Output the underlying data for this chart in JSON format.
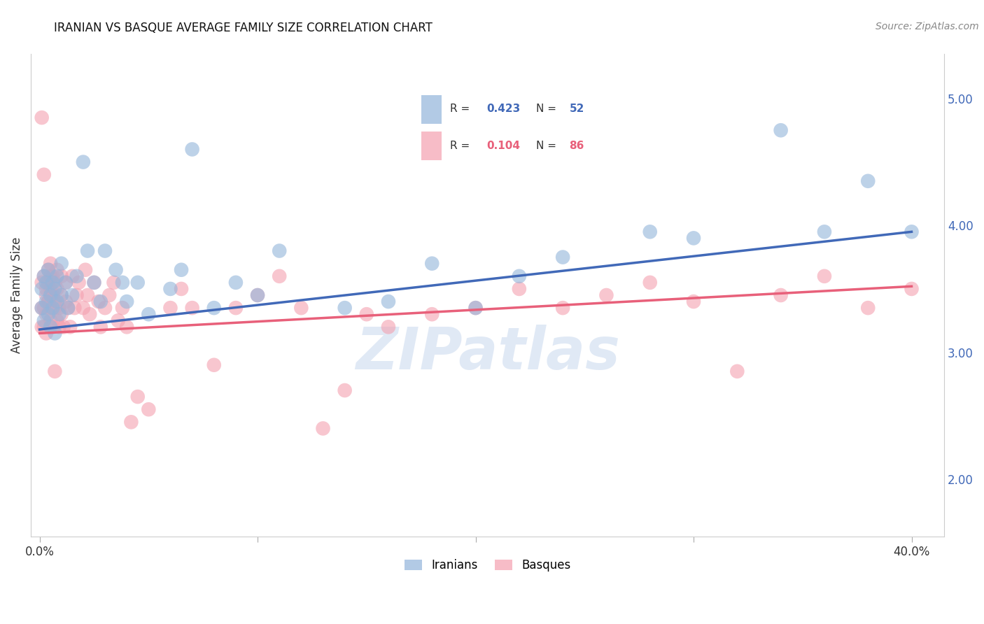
{
  "title": "IRANIAN VS BASQUE AVERAGE FAMILY SIZE CORRELATION CHART",
  "source": "Source: ZipAtlas.com",
  "ylabel": "Average Family Size",
  "ylim": [
    1.55,
    5.35
  ],
  "xlim": [
    -0.004,
    0.415
  ],
  "right_yticks": [
    2.0,
    3.0,
    4.0,
    5.0
  ],
  "blue_color": "#92B4DA",
  "pink_color": "#F4A0B0",
  "blue_line_color": "#4169B8",
  "pink_line_color": "#E8607A",
  "blue_R": 0.423,
  "blue_N": 52,
  "pink_R": 0.104,
  "pink_N": 86,
  "watermark": "ZIPatlas",
  "background_color": "#ffffff",
  "grid_color": "#cccccc",
  "iranians_x": [
    0.001,
    0.001,
    0.002,
    0.002,
    0.003,
    0.003,
    0.004,
    0.004,
    0.005,
    0.005,
    0.006,
    0.006,
    0.007,
    0.007,
    0.008,
    0.008,
    0.009,
    0.01,
    0.01,
    0.012,
    0.013,
    0.015,
    0.017,
    0.02,
    0.022,
    0.025,
    0.028,
    0.03,
    0.035,
    0.038,
    0.04,
    0.045,
    0.05,
    0.06,
    0.065,
    0.07,
    0.08,
    0.09,
    0.1,
    0.11,
    0.14,
    0.16,
    0.18,
    0.2,
    0.22,
    0.24,
    0.28,
    0.3,
    0.34,
    0.36,
    0.38,
    0.4
  ],
  "iranians_y": [
    3.35,
    3.5,
    3.25,
    3.6,
    3.4,
    3.55,
    3.3,
    3.65,
    3.45,
    3.2,
    3.55,
    3.35,
    3.15,
    3.5,
    3.6,
    3.4,
    3.3,
    3.45,
    3.7,
    3.55,
    3.35,
    3.45,
    3.6,
    4.5,
    3.8,
    3.55,
    3.4,
    3.8,
    3.65,
    3.55,
    3.4,
    3.55,
    3.3,
    3.5,
    3.65,
    4.6,
    3.35,
    3.55,
    3.45,
    3.8,
    3.35,
    3.4,
    3.7,
    3.35,
    3.6,
    3.75,
    3.95,
    3.9,
    4.75,
    3.95,
    4.35,
    3.95
  ],
  "basques_x": [
    0.001,
    0.001,
    0.001,
    0.002,
    0.002,
    0.002,
    0.003,
    0.003,
    0.003,
    0.004,
    0.004,
    0.004,
    0.005,
    0.005,
    0.005,
    0.005,
    0.006,
    0.006,
    0.006,
    0.007,
    0.007,
    0.007,
    0.008,
    0.008,
    0.008,
    0.009,
    0.009,
    0.01,
    0.01,
    0.01,
    0.011,
    0.012,
    0.012,
    0.013,
    0.014,
    0.015,
    0.016,
    0.017,
    0.018,
    0.02,
    0.021,
    0.022,
    0.023,
    0.025,
    0.027,
    0.028,
    0.03,
    0.032,
    0.034,
    0.036,
    0.038,
    0.04,
    0.042,
    0.045,
    0.05,
    0.06,
    0.065,
    0.07,
    0.08,
    0.09,
    0.1,
    0.11,
    0.12,
    0.13,
    0.14,
    0.15,
    0.16,
    0.18,
    0.2,
    0.22,
    0.24,
    0.26,
    0.28,
    0.3,
    0.32,
    0.34,
    0.36,
    0.38,
    0.4,
    0.001,
    0.002,
    0.003,
    0.004,
    0.005,
    0.006,
    0.007
  ],
  "basques_y": [
    3.35,
    3.55,
    4.85,
    3.2,
    3.6,
    4.4,
    3.45,
    3.3,
    3.15,
    3.65,
    3.4,
    3.55,
    3.25,
    3.5,
    3.35,
    3.7,
    3.45,
    3.2,
    3.6,
    3.35,
    3.55,
    3.4,
    3.25,
    3.5,
    3.65,
    3.35,
    3.2,
    3.45,
    3.3,
    3.6,
    3.2,
    3.4,
    3.55,
    3.35,
    3.2,
    3.6,
    3.35,
    3.45,
    3.55,
    3.35,
    3.65,
    3.45,
    3.3,
    3.55,
    3.4,
    3.2,
    3.35,
    3.45,
    3.55,
    3.25,
    3.35,
    3.2,
    2.45,
    2.65,
    2.55,
    3.35,
    3.5,
    3.35,
    2.9,
    3.35,
    3.45,
    3.6,
    3.35,
    2.4,
    2.7,
    3.3,
    3.2,
    3.3,
    3.35,
    3.5,
    3.35,
    3.45,
    3.55,
    3.4,
    2.85,
    3.45,
    3.6,
    3.35,
    3.5,
    3.2,
    3.35,
    3.5,
    3.4,
    3.6,
    3.45,
    2.85
  ]
}
